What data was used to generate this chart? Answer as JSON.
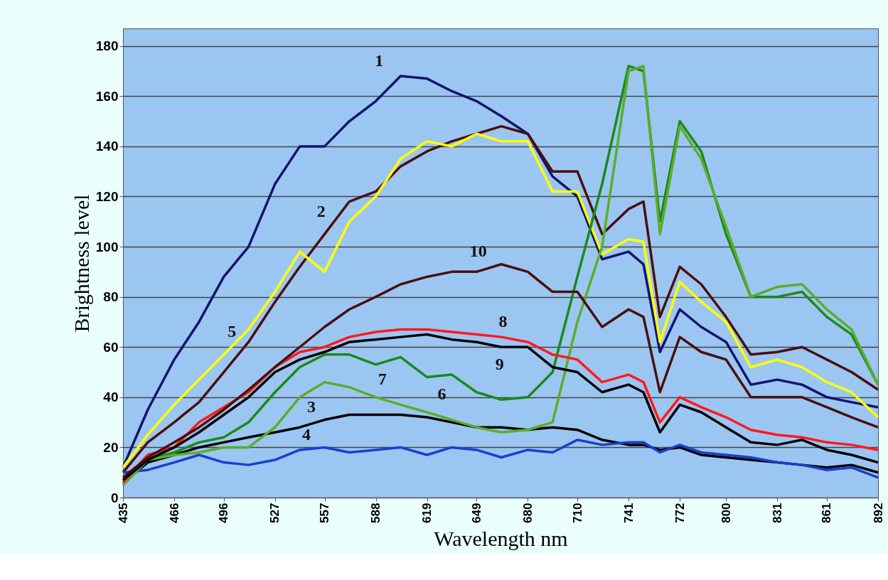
{
  "chart_data": {
    "type": "line",
    "xlabel": "Wavelength nm",
    "ylabel": "Brightness level",
    "x": [
      435,
      450,
      466,
      481,
      496,
      511,
      527,
      542,
      557,
      572,
      588,
      603,
      619,
      634,
      649,
      664,
      680,
      695,
      710,
      725,
      741,
      750,
      760,
      772,
      785,
      800,
      815,
      831,
      846,
      861,
      876,
      892
    ],
    "xlim": [
      435,
      892
    ],
    "xticks": [
      435,
      466,
      496,
      527,
      557,
      588,
      619,
      649,
      680,
      710,
      741,
      772,
      800,
      831,
      861,
      892
    ],
    "ylim": [
      0,
      187
    ],
    "yticks": [
      0,
      20,
      40,
      60,
      80,
      100,
      120,
      140,
      160,
      180
    ],
    "grid": "y",
    "legend": false,
    "marker": "none",
    "line_style": "solid",
    "series": [
      {
        "name": "1",
        "color": "#14146e",
        "values": [
          12,
          35,
          55,
          70,
          88,
          100,
          125,
          140,
          140,
          150,
          158,
          168,
          167,
          162,
          158,
          152,
          145,
          128,
          120,
          95,
          98,
          93,
          58,
          75,
          68,
          62,
          45,
          47,
          45,
          40,
          38,
          36
        ]
      },
      {
        "name": "2",
        "color": "#4a0f0f",
        "values": [
          10,
          22,
          30,
          38,
          50,
          62,
          78,
          92,
          105,
          118,
          122,
          132,
          138,
          142,
          145,
          148,
          145,
          130,
          130,
          105,
          115,
          118,
          72,
          92,
          85,
          72,
          57,
          58,
          60,
          55,
          50,
          43
        ]
      },
      {
        "name": "3",
        "color": "#000000",
        "values": [
          6,
          14,
          17,
          20,
          22,
          24,
          26,
          28,
          31,
          33,
          33,
          33,
          32,
          30,
          28,
          28,
          27,
          28,
          27,
          23,
          21,
          21,
          19,
          20,
          17,
          16,
          15,
          14,
          13,
          12,
          13,
          10
        ]
      },
      {
        "name": "4",
        "color": "#1a3fd0",
        "values": [
          10,
          11,
          14,
          17,
          14,
          13,
          15,
          19,
          20,
          18,
          19,
          20,
          17,
          20,
          19,
          16,
          19,
          18,
          23,
          21,
          22,
          22,
          18,
          21,
          18,
          17,
          16,
          14,
          13,
          11,
          12,
          8
        ]
      },
      {
        "name": "5",
        "color": "#ffff00",
        "values": [
          12,
          25,
          37,
          47,
          57,
          67,
          82,
          98,
          90,
          110,
          120,
          135,
          142,
          140,
          145,
          142,
          142,
          122,
          122,
          97,
          103,
          102,
          62,
          86,
          78,
          70,
          52,
          55,
          52,
          46,
          42,
          32
        ]
      },
      {
        "name": "6",
        "color": "#1a8a1a",
        "values": [
          5,
          15,
          18,
          22,
          24,
          30,
          42,
          52,
          57,
          57,
          53,
          56,
          48,
          49,
          42,
          39,
          40,
          50,
          88,
          125,
          172,
          170,
          110,
          150,
          138,
          105,
          80,
          80,
          82,
          72,
          65,
          45
        ]
      },
      {
        "name": "7",
        "color": "#5aad2a",
        "values": [
          5,
          15,
          17,
          18,
          20,
          20,
          28,
          40,
          46,
          44,
          40,
          37,
          34,
          31,
          28,
          26,
          27,
          30,
          70,
          100,
          170,
          172,
          105,
          148,
          135,
          108,
          80,
          84,
          85,
          75,
          67,
          45
        ]
      },
      {
        "name": "8",
        "color": "#ff1a1a",
        "values": [
          6,
          17,
          20,
          30,
          36,
          42,
          52,
          58,
          60,
          64,
          66,
          67,
          67,
          66,
          65,
          64,
          62,
          57,
          55,
          46,
          49,
          46,
          30,
          40,
          36,
          32,
          27,
          25,
          24,
          22,
          21,
          19
        ]
      },
      {
        "name": "9",
        "color": "#000000",
        "values": [
          7,
          15,
          20,
          26,
          33,
          40,
          50,
          55,
          58,
          62,
          63,
          64,
          65,
          63,
          62,
          60,
          60,
          52,
          50,
          42,
          45,
          42,
          26,
          37,
          34,
          28,
          22,
          21,
          23,
          19,
          17,
          14
        ]
      },
      {
        "name": "10",
        "color": "#4a0f0f",
        "values": [
          8,
          16,
          22,
          28,
          35,
          43,
          52,
          60,
          68,
          75,
          80,
          85,
          88,
          90,
          90,
          93,
          90,
          82,
          82,
          68,
          75,
          72,
          42,
          64,
          58,
          55,
          40,
          40,
          40,
          36,
          32,
          28
        ]
      }
    ]
  }
}
